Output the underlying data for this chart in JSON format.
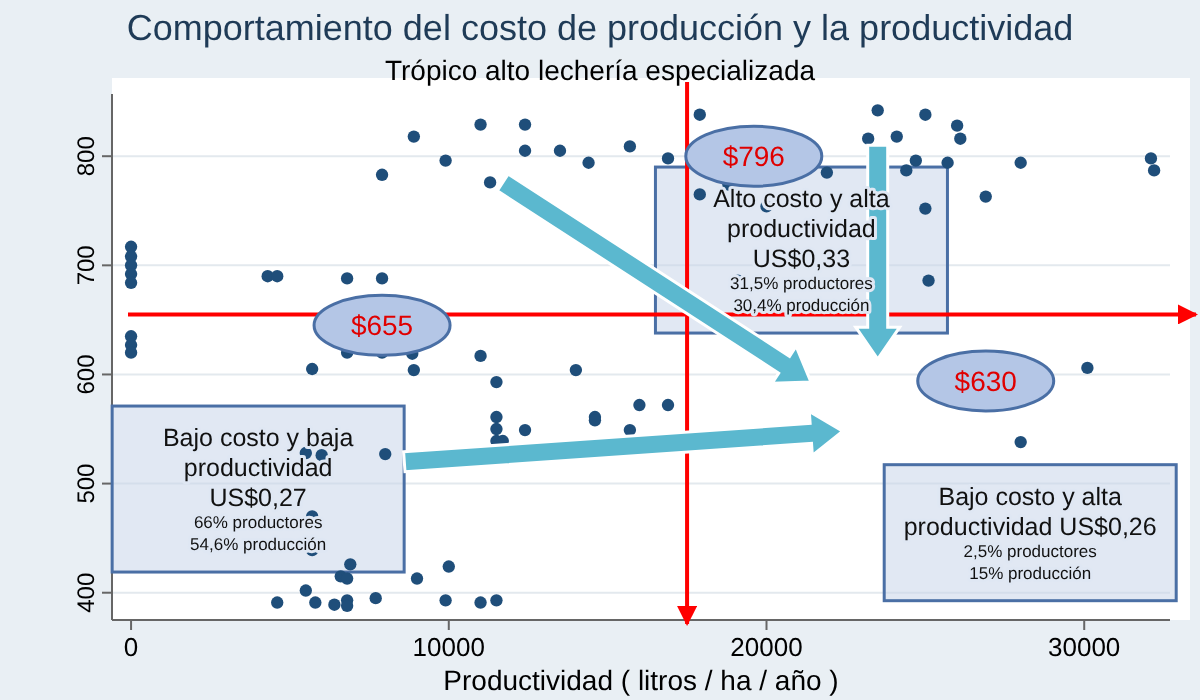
{
  "chart_data": {
    "type": "scatter",
    "title": "Comportamiento del costo de producción y la productividad",
    "subtitle": "Trópico alto lechería especializada",
    "xlabel": "Productividad ( litros / ha / año )",
    "xlim": [
      -600,
      32700
    ],
    "ylim": [
      375,
      857
    ],
    "xticks": [
      0,
      10000,
      20000,
      30000
    ],
    "yticks": [
      400,
      500,
      600,
      700,
      800
    ],
    "grid": "y",
    "marker": "circle",
    "series": [
      {
        "color": "#1f4e7a",
        "x": [
          0,
          0,
          0,
          0,
          0,
          0,
          0,
          0,
          4300,
          4600,
          6800,
          7900,
          7900,
          8900,
          9900,
          11000,
          12400,
          12400,
          13500,
          14400,
          11300,
          6800,
          7900,
          8850,
          8900,
          5700,
          11000,
          11500,
          14000,
          11500,
          14600,
          17900,
          15700,
          16900,
          18800,
          17900,
          21900,
          20000,
          23500,
          25000,
          23200,
          24100,
          26000,
          26100,
          24700,
          24400,
          25700,
          28000,
          32100,
          32200,
          26900,
          25000,
          19100,
          25100,
          30100,
          16000,
          16900,
          15700,
          28000,
          11500,
          11500,
          11700,
          12400,
          14600,
          5500,
          6000,
          8000,
          5700,
          5700,
          6900,
          6600,
          6800,
          9000,
          10000,
          5500,
          4600,
          5800,
          6400,
          6800,
          6800,
          7700,
          9900,
          11000,
          11500
        ],
        "values": [
          717,
          708,
          700,
          692,
          684,
          635,
          627,
          620,
          690,
          690,
          688,
          688,
          783,
          818,
          796,
          829,
          829,
          805,
          805,
          794,
          776,
          620,
          620,
          619,
          604,
          605,
          617,
          593,
          604,
          561,
          561,
          838,
          809,
          798,
          774,
          765,
          785,
          754,
          842,
          838,
          816,
          818,
          828,
          816,
          796,
          787,
          794,
          794,
          798,
          787,
          763,
          752,
          686,
          686,
          606,
          572,
          572,
          549,
          538,
          550,
          539,
          539,
          549,
          558,
          528,
          526,
          527,
          470,
          439,
          426,
          415,
          413,
          413,
          424,
          402,
          391,
          391,
          389,
          393,
          388,
          395,
          393,
          391,
          393
        ]
      }
    ],
    "ref_lines": [
      {
        "axis": "y",
        "value": 655,
        "color": "#ff0000"
      },
      {
        "axis": "x",
        "value": 17500,
        "color": "#ff0000"
      }
    ],
    "annotations": [
      "$655",
      "$796",
      "$630",
      "Bajo costo y baja\nproductividad\nUS$0,27\n66% productores\n54,6% producción",
      "Alto costo y alta\nproductividad\nUS$0,33\n31,5% productores\n30,4% producción",
      "Bajo costo  y alta\nproductividad US$0,26\n2,5% productores\n15% producción"
    ]
  }
}
